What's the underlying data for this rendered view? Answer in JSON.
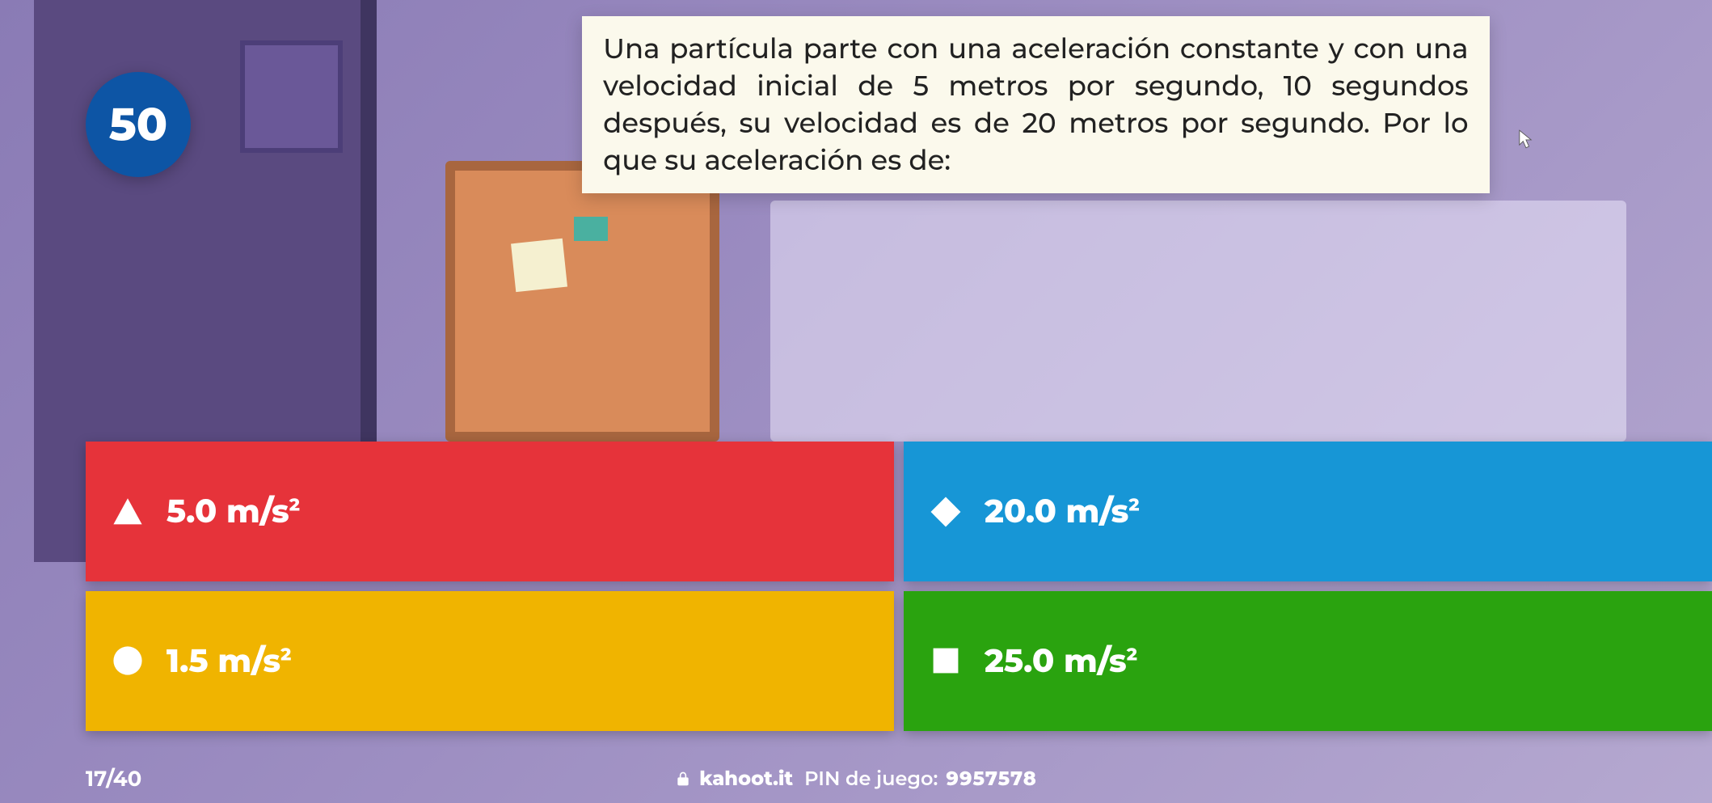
{
  "colors": {
    "timer_bg": "#0d55a5",
    "question_bg": "#fbf9ec",
    "answer_red": "#e6333a",
    "answer_blue": "#1796d6",
    "answer_yellow": "#f0b400",
    "answer_green": "#2aa30f",
    "shape_fill": "#ffffff",
    "footer_text": "#ffffff"
  },
  "timer": {
    "value": "50"
  },
  "question": {
    "text": "Una partícula parte con una aceleración constante y con una velocidad inicial de 5 metros por segundo, 10 segundos después, su velocidad es de 20 metros por segundo. Por lo que su aceleración es de:"
  },
  "answers": [
    {
      "id": "a",
      "shape": "triangle",
      "color_key": "answer_red",
      "label_html": "5.0 m/s<sup>2</sup>"
    },
    {
      "id": "b",
      "shape": "diamond",
      "color_key": "answer_blue",
      "label_html": "20.0 m/s<sup>2</sup>"
    },
    {
      "id": "c",
      "shape": "circle",
      "color_key": "answer_yellow",
      "label_html": "1.5 m/s<sup>2</sup>"
    },
    {
      "id": "d",
      "shape": "square",
      "color_key": "answer_green",
      "label_html": "25.0 m/s<sup>2</sup>"
    }
  ],
  "footer": {
    "progress": "17/40",
    "domain": "kahoot.it",
    "pin_label": "PIN de juego:",
    "pin": "9957578"
  }
}
